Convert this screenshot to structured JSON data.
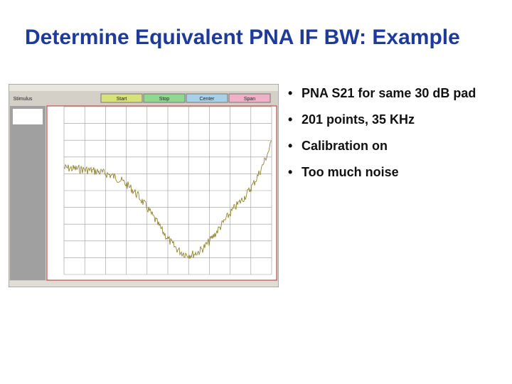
{
  "header": {
    "title": "Determine Equivalent PNA IF BW: Example"
  },
  "bullets": [
    "PNA S21 for same 30 dB pad",
    "201 points, 35 KHz",
    "Calibration on",
    "Too much noise"
  ],
  "screenshot": {
    "toolbar": [
      "Stimulus",
      "Start",
      "Stop",
      "Center",
      "Span"
    ]
  }
}
